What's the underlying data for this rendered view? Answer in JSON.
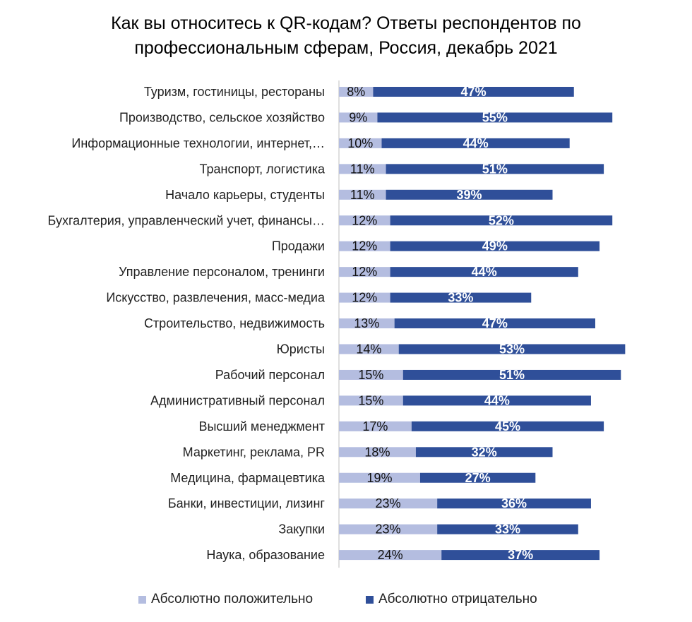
{
  "title": {
    "line1": "Как вы относитесь к QR-кодам? Ответы респондентов по",
    "line2": "профессиональным сферам, Россия, декабрь 2021"
  },
  "legend": {
    "positive_label": "Абсолютно положительно",
    "negative_label": "Абсолютно отрицательно"
  },
  "colors": {
    "positive": "#b4bde0",
    "negative": "#2f4f99",
    "axis": "#bfbfbf"
  },
  "chart_data": {
    "type": "bar",
    "orientation": "horizontal",
    "stacked": true,
    "title": "Как вы относитесь к QR-кодам? Ответы респондентов по профессиональным сферам, Россия, декабрь 2021",
    "value_unit": "%",
    "legend_position": "bottom",
    "grid": false,
    "categories": [
      "Туризм, гостиницы, рестораны",
      "Производство, сельское хозяйство",
      "Информационные технологии, интернет,…",
      "Транспорт, логистика",
      "Начало карьеры, студенты",
      "Бухгалтерия, управленческий учет, финансы…",
      "Продажи",
      "Управление персоналом, тренинги",
      "Искусство, развлечения, масс-медиа",
      "Строительство, недвижимость",
      "Юристы",
      "Рабочий персонал",
      "Административный персонал",
      "Высший менеджмент",
      "Маркетинг, реклама, PR",
      "Медицина, фармацевтика",
      "Банки, инвестиции, лизинг",
      "Закупки",
      "Наука, образование"
    ],
    "series": [
      {
        "name": "Абсолютно положительно",
        "values": [
          8,
          9,
          10,
          11,
          11,
          12,
          12,
          12,
          12,
          13,
          14,
          15,
          15,
          17,
          18,
          19,
          23,
          23,
          24
        ]
      },
      {
        "name": "Абсолютно отрицательно",
        "values": [
          47,
          55,
          44,
          51,
          39,
          52,
          49,
          44,
          33,
          47,
          53,
          51,
          44,
          45,
          32,
          27,
          36,
          33,
          37
        ]
      }
    ],
    "data_labels": {
      "positive": [
        "8%",
        "9%",
        "10%",
        "11%",
        "11%",
        "12%",
        "12%",
        "12%",
        "12%",
        "13%",
        "14%",
        "15%",
        "15%",
        "17%",
        "18%",
        "19%",
        "23%",
        "23%",
        "24%"
      ],
      "negative": [
        "47%",
        "55%",
        "44%",
        "51%",
        "39%",
        "52%",
        "49%",
        "44%",
        "33%",
        "47%",
        "53%",
        "51%",
        "44%",
        "45%",
        "32%",
        "27%",
        "36%",
        "33%",
        "37%"
      ]
    }
  }
}
